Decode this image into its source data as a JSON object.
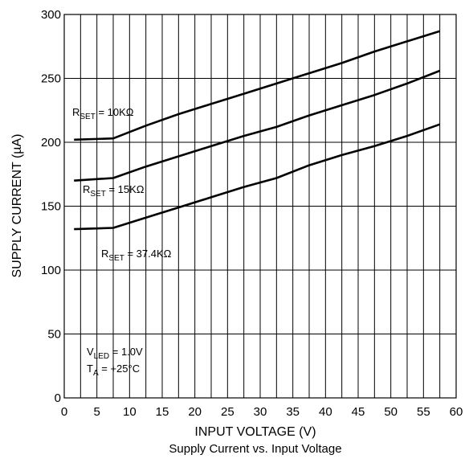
{
  "chart_data": {
    "type": "line",
    "caption": "Supply Current vs. Input Voltage",
    "xlabel": "INPUT VOLTAGE (V)",
    "ylabel": "SUPPLY CURRENT (µA)",
    "xlim": [
      0,
      60
    ],
    "ylim": [
      0,
      300
    ],
    "x_ticks": [
      0,
      5,
      10,
      15,
      20,
      25,
      30,
      35,
      40,
      45,
      50,
      55,
      60
    ],
    "y_ticks": [
      0,
      50,
      100,
      150,
      200,
      250,
      300
    ],
    "grid": true,
    "series": [
      {
        "label_main": "R",
        "label_sub": "SET",
        "label_rest": " = 10KΩ",
        "x": [
          1.5,
          7.5,
          12.5,
          17.5,
          22.5,
          27.5,
          32.5,
          37.5,
          42.5,
          47.5,
          52.5,
          57.5
        ],
        "values": [
          202,
          203,
          213,
          222,
          230,
          238,
          246,
          254,
          262,
          271,
          279,
          287
        ]
      },
      {
        "label_main": "R",
        "label_sub": "SET",
        "label_rest": " = 15KΩ",
        "x": [
          1.5,
          7.5,
          12.5,
          17.5,
          22.5,
          27.5,
          32.5,
          37.5,
          42.5,
          47.5,
          52.5,
          57.5
        ],
        "values": [
          170,
          172,
          181,
          189,
          197,
          205,
          212,
          221,
          229,
          237,
          246,
          256
        ]
      },
      {
        "label_main": "R",
        "label_sub": "SET",
        "label_rest": " = 37.4KΩ",
        "x": [
          1.5,
          7.5,
          12.5,
          17.5,
          22.5,
          27.5,
          32.5,
          37.5,
          42.5,
          47.5,
          52.5,
          57.5
        ],
        "values": [
          132,
          133,
          141,
          149,
          157,
          165,
          172,
          182,
          190,
          197,
          205,
          214
        ]
      }
    ],
    "conditions": [
      {
        "main": "V",
        "sub": "LED",
        "rest": " = 1.0V"
      },
      {
        "main": "T",
        "sub": "A",
        "rest": " = +25°C"
      }
    ],
    "colors": {
      "line": "#000000",
      "grid": "#000000",
      "background": "#ffffff"
    }
  }
}
